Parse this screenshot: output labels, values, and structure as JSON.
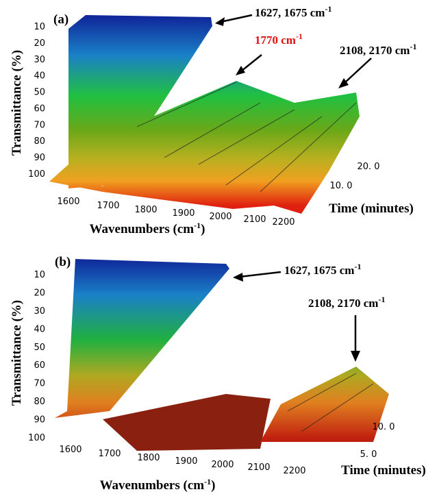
{
  "panels": [
    {
      "label": "(a)",
      "y_axis_label": "Transmittance (%)",
      "y_ticks": [
        "10",
        "20",
        "30",
        "40",
        "50",
        "60",
        "70",
        "80",
        "90",
        "100"
      ],
      "x_ticks": [
        "1600",
        "1700",
        "1800",
        "1900",
        "2000",
        "2100",
        "2200"
      ],
      "x_axis_label": {
        "text": "Wavenumbers (cm",
        "sup": "-1",
        "tail": ")"
      },
      "time_ticks": [
        "20. 0",
        "10. 0"
      ],
      "time_axis_label": "Time (minutes)",
      "annotations": [
        {
          "text": "1627, 1675 cm",
          "sup": "-1"
        },
        {
          "text": "1770 cm",
          "sup": "-1"
        },
        {
          "text": "2108, 2170 cm",
          "sup": "-1"
        }
      ]
    },
    {
      "label": "(b)",
      "y_axis_label": "Transmittance (%)",
      "y_ticks": [
        "10",
        "20",
        "30",
        "40",
        "50",
        "60",
        "70",
        "80",
        "90",
        "100"
      ],
      "x_ticks": [
        "1600",
        "1700",
        "1800",
        "1900",
        "2000",
        "2100",
        "2200"
      ],
      "x_axis_label": {
        "text": "Wavenumbers (cm",
        "sup": "-1",
        "tail": ")"
      },
      "time_ticks": [
        "10. 0",
        "5. 0"
      ],
      "time_axis_label": "Time (minutes)",
      "annotations": [
        {
          "text": "1627, 1675 cm",
          "sup": "-1"
        },
        {
          "text": "2108, 2170 cm",
          "sup": "-1"
        }
      ]
    }
  ]
}
